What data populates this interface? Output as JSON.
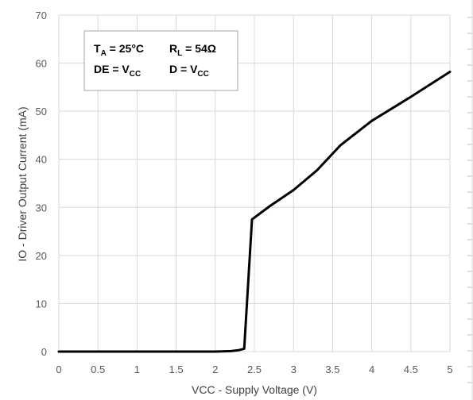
{
  "chart_data": {
    "type": "line",
    "title": "",
    "xlabel": "VCC - Supply Voltage (V)",
    "ylabel": "IO - Driver Output Current (mA)",
    "xlim": [
      0,
      5
    ],
    "ylim": [
      0,
      70
    ],
    "x_ticks": [
      "0",
      "0.5",
      "1",
      "1.5",
      "2",
      "2.5",
      "3",
      "3.5",
      "4",
      "4.5",
      "5"
    ],
    "y_ticks": [
      "0",
      "10",
      "20",
      "30",
      "40",
      "50",
      "60",
      "70"
    ],
    "grid": true,
    "series": [
      {
        "x": [
          0,
          2.0,
          2.2,
          2.3,
          2.37,
          2.47,
          2.7,
          3.0,
          3.3,
          3.6,
          4.0,
          4.5,
          5.0
        ],
        "y": [
          0,
          0,
          0.1,
          0.3,
          0.6,
          27.5,
          30.3,
          33.6,
          37.7,
          42.9,
          48.0,
          53.0,
          58.2
        ],
        "color": "#000000"
      }
    ],
    "legend": {
      "position": "top-left",
      "row1": {
        "ta_label": "T",
        "ta_sub": "A",
        "ta_value": " = 25°C",
        "rl_label": "R",
        "rl_sub": "L",
        "rl_value": " = 54Ω"
      },
      "row2": {
        "de_label": "DE =  V",
        "de_sub": "CC",
        "d_label": "D =  V",
        "d_sub": "CC"
      }
    }
  }
}
